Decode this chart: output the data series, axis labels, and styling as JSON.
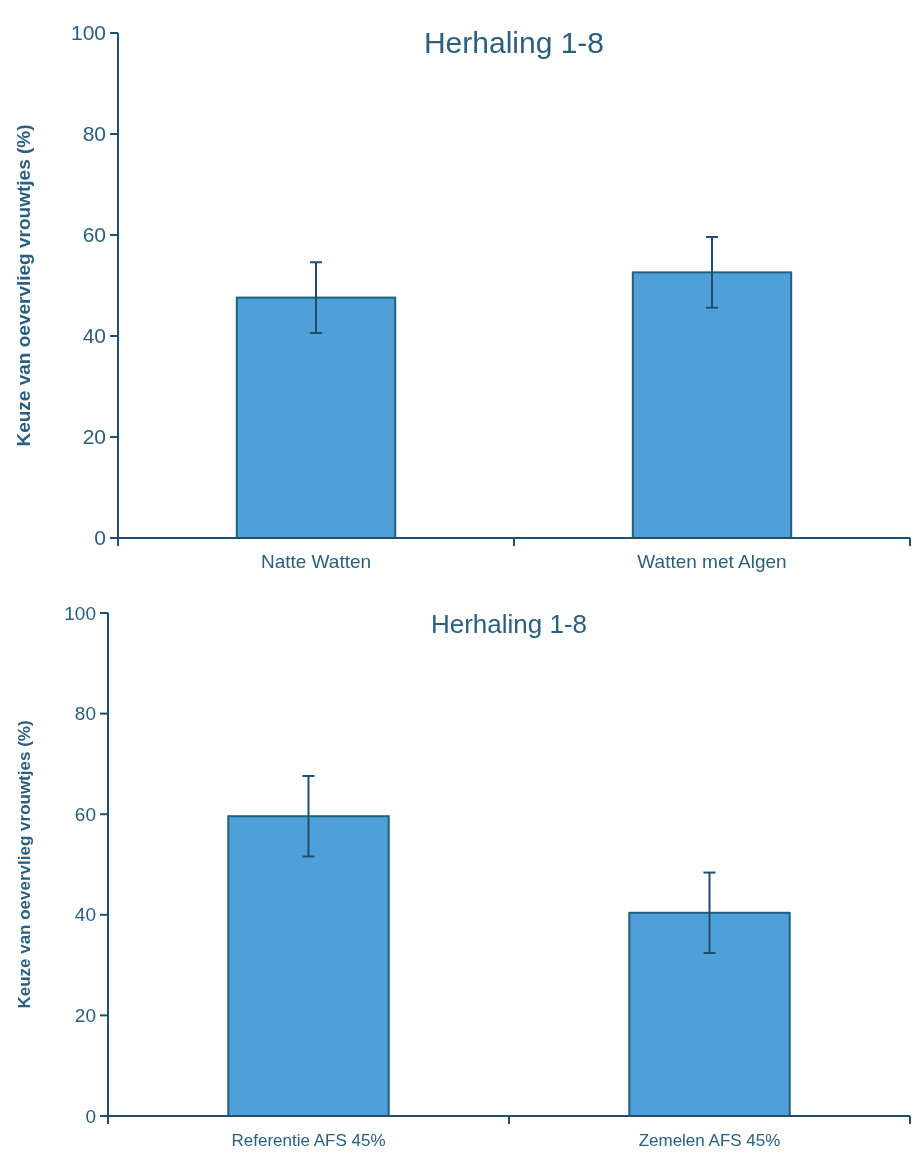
{
  "chart_data": [
    {
      "type": "bar",
      "title": "Herhaling 1-8",
      "ylabel": "Keuze van oevervlieg vrouwtjes (%)",
      "categories": [
        "Natte Watten",
        "Watten met Algen"
      ],
      "values": [
        47.6,
        52.6
      ],
      "errors": [
        7,
        7
      ],
      "color": "#4f9fd8",
      "ylim": [
        0,
        100
      ],
      "yticks": [
        0,
        20,
        40,
        60,
        80,
        100
      ]
    },
    {
      "type": "bar",
      "title": "Herhaling 1-8",
      "ylabel": "Keuze van oevervlieg vrouwtjes (%)",
      "categories": [
        "Referentie AFS 45%",
        "Zemelen AFS 45%"
      ],
      "values": [
        59.6,
        40.4
      ],
      "errors": [
        8,
        8
      ],
      "color": "#4f9fd8",
      "ylim": [
        0,
        100
      ],
      "yticks": [
        0,
        20,
        40,
        60,
        80,
        100
      ]
    }
  ]
}
